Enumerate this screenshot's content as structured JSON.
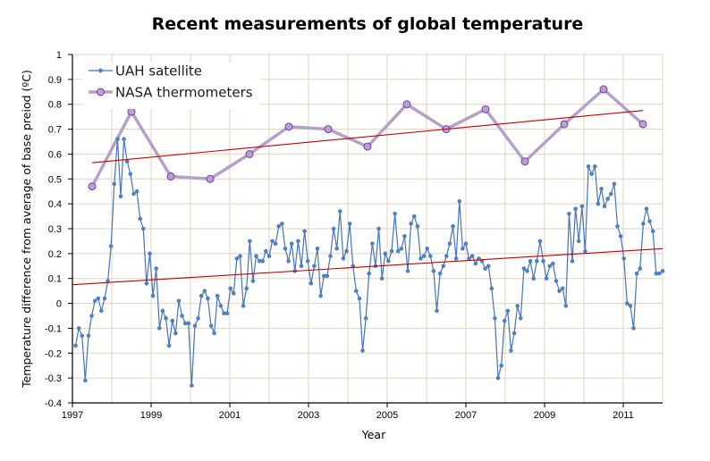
{
  "chart_data": {
    "type": "line",
    "title": "Recent measurements of global temperature",
    "xlabel": "Year",
    "ylabel": "Temperature difference from average of base preiod (ºC)",
    "xlim": [
      1997,
      2012
    ],
    "ylim": [
      -0.4,
      1.0
    ],
    "x_ticks": [
      "1997",
      "1999",
      "2001",
      "2003",
      "2005",
      "2007",
      "2009",
      "2011"
    ],
    "x_tick_values": [
      1997,
      1999,
      2001,
      2003,
      2005,
      2007,
      2009,
      2011
    ],
    "y_ticks": [
      "-0.4",
      "-0.3",
      "-0.2",
      "-0.1",
      "0",
      "0.1",
      "0.2",
      "0.3",
      "0.4",
      "0.5",
      "0.6",
      "0.7",
      "0.8",
      "0.9",
      "1"
    ],
    "y_tick_values": [
      -0.4,
      -0.3,
      -0.2,
      -0.1,
      0,
      0.1,
      0.2,
      0.3,
      0.4,
      0.5,
      0.6,
      0.7,
      0.8,
      0.9,
      1.0
    ],
    "grid": true,
    "legend_position": "top-left",
    "series": [
      {
        "name": "UAH satellite",
        "color": "#4472C4",
        "marker_color": "#4F81BD",
        "x_start": 1997.08,
        "x_end": 2012.0,
        "values": [
          -0.17,
          -0.1,
          -0.13,
          -0.31,
          -0.13,
          -0.05,
          0.01,
          0.02,
          -0.03,
          0.02,
          0.09,
          0.23,
          0.48,
          0.66,
          0.43,
          0.66,
          0.57,
          0.52,
          0.44,
          0.45,
          0.34,
          0.3,
          0.08,
          0.2,
          0.03,
          0.14,
          -0.1,
          -0.03,
          -0.06,
          -0.17,
          -0.07,
          -0.12,
          0.01,
          -0.05,
          -0.08,
          -0.08,
          -0.33,
          -0.09,
          -0.06,
          0.03,
          0.05,
          0.02,
          -0.09,
          -0.12,
          0.03,
          -0.01,
          -0.04,
          -0.04,
          0.06,
          0.04,
          0.18,
          0.19,
          -0.01,
          0.06,
          0.25,
          0.09,
          0.19,
          0.17,
          0.17,
          0.21,
          0.19,
          0.25,
          0.24,
          0.31,
          0.32,
          0.22,
          0.17,
          0.24,
          0.13,
          0.25,
          0.15,
          0.29,
          0.17,
          0.08,
          0.15,
          0.22,
          0.03,
          0.11,
          0.11,
          0.19,
          0.3,
          0.22,
          0.37,
          0.18,
          0.21,
          0.32,
          0.15,
          0.05,
          0.02,
          -0.19,
          -0.06,
          0.12,
          0.24,
          0.15,
          0.3,
          0.1,
          0.2,
          0.17,
          0.21,
          0.36,
          0.21,
          0.22,
          0.27,
          0.13,
          0.32,
          0.35,
          0.31,
          0.18,
          0.19,
          0.22,
          0.19,
          0.13,
          -0.03,
          0.12,
          0.15,
          0.19,
          0.24,
          0.31,
          0.18,
          0.41,
          0.22,
          0.24,
          0.18,
          0.19,
          0.16,
          0.18,
          0.17,
          0.14,
          0.15,
          0.06,
          -0.06,
          -0.3,
          -0.25,
          -0.07,
          -0.03,
          -0.19,
          -0.12,
          -0.01,
          -0.06,
          0.14,
          0.13,
          0.17,
          0.1,
          0.17,
          0.25,
          0.17,
          0.1,
          0.15,
          0.16,
          0.09,
          0.05,
          0.06,
          -0.01,
          0.36,
          0.17,
          0.38,
          0.25,
          0.39,
          0.21,
          0.55,
          0.52,
          0.55,
          0.4,
          0.46,
          0.39,
          0.42,
          0.44,
          0.48,
          0.31,
          0.27,
          0.18,
          0.0,
          -0.01,
          -0.1,
          0.12,
          0.14,
          0.32,
          0.38,
          0.33,
          0.29,
          0.12,
          0.12,
          0.13
        ],
        "trend": {
          "x": [
            1997.0,
            2012.0
          ],
          "y": [
            0.075,
            0.22
          ],
          "color": "#C00000"
        }
      },
      {
        "name": "NASA thermometers",
        "color": "#B3A2C7",
        "marker_color": "#B9A0D2",
        "marker_edge": "#7030A0",
        "x": [
          1997.5,
          1998.5,
          1999.5,
          2000.5,
          2001.5,
          2002.5,
          2003.5,
          2004.5,
          2005.5,
          2006.5,
          2007.5,
          2008.5,
          2009.5,
          2010.5,
          2011.5
        ],
        "values": [
          0.47,
          0.77,
          0.51,
          0.5,
          0.6,
          0.71,
          0.7,
          0.63,
          0.8,
          0.7,
          0.78,
          0.57,
          0.72,
          0.86,
          0.72
        ],
        "trend": {
          "x": [
            1997.5,
            2011.5
          ],
          "y": [
            0.565,
            0.775
          ],
          "color": "#C00000"
        }
      }
    ]
  },
  "legend": {
    "items": [
      "UAH satellite",
      "NASA thermometers"
    ]
  }
}
